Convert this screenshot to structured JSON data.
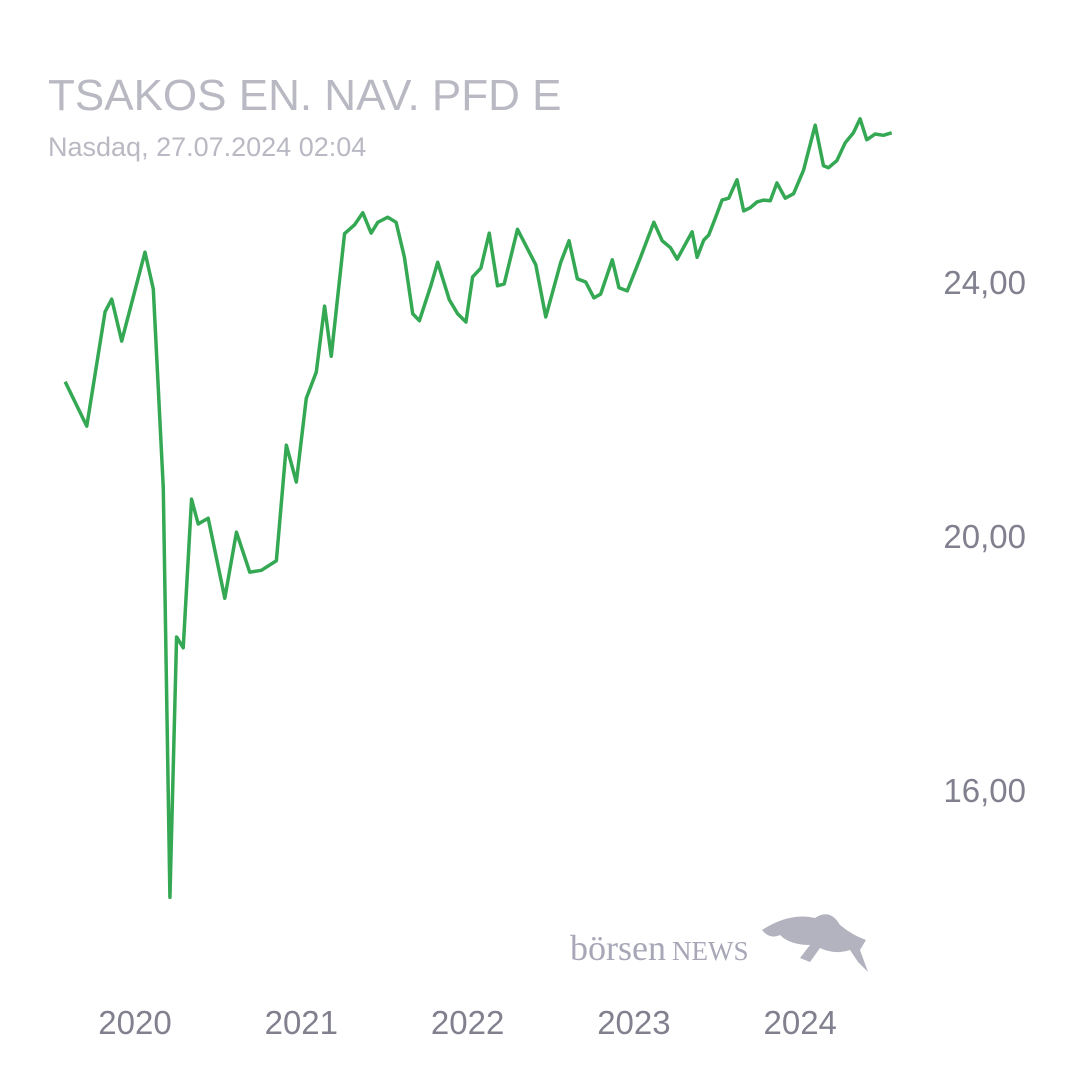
{
  "chart_data": {
    "type": "line",
    "title": "TSAKOS EN. NAV. PFD E",
    "subtitle": "Nasdaq, 27.07.2024 02:04",
    "logo": [
      "börsen",
      "NEWS"
    ],
    "x": [
      2019.58,
      2019.71,
      2019.82,
      2019.86,
      2019.92,
      2020.06,
      2020.11,
      2020.17,
      2020.21,
      2020.25,
      2020.29,
      2020.34,
      2020.38,
      2020.44,
      2020.54,
      2020.61,
      2020.69,
      2020.76,
      2020.85,
      2020.91,
      2020.97,
      2021.03,
      2021.09,
      2021.14,
      2021.18,
      2021.26,
      2021.32,
      2021.37,
      2021.42,
      2021.46,
      2021.52,
      2021.57,
      2021.62,
      2021.67,
      2021.71,
      2021.78,
      2021.82,
      2021.89,
      2021.94,
      2021.99,
      2022.03,
      2022.08,
      2022.13,
      2022.18,
      2022.22,
      2022.3,
      2022.41,
      2022.47,
      2022.56,
      2022.61,
      2022.66,
      2022.71,
      2022.76,
      2022.8,
      2022.87,
      2022.91,
      2022.96,
      2023.04,
      2023.12,
      2023.17,
      2023.22,
      2023.26,
      2023.35,
      2023.38,
      2023.42,
      2023.45,
      2023.49,
      2023.53,
      2023.57,
      2023.62,
      2023.66,
      2023.7,
      2023.74,
      2023.78,
      2023.82,
      2023.86,
      2023.91,
      2023.96,
      2024.02,
      2024.09,
      2024.14,
      2024.17,
      2024.22,
      2024.27,
      2024.32,
      2024.36,
      2024.4,
      2024.45,
      2024.5,
      2024.55
    ],
    "series": [
      {
        "name": "TSAKOS EN. NAV. PFD E",
        "color": "#34a853",
        "values": [
          22.43,
          21.73,
          23.53,
          23.73,
          23.07,
          24.47,
          23.89,
          20.76,
          14.31,
          18.41,
          18.24,
          20.58,
          20.19,
          20.28,
          19.02,
          20.06,
          19.43,
          19.46,
          19.61,
          21.43,
          20.85,
          22.17,
          22.58,
          23.62,
          22.83,
          24.76,
          24.9,
          25.09,
          24.77,
          24.94,
          25.02,
          24.94,
          24.39,
          23.5,
          23.39,
          23.95,
          24.31,
          23.72,
          23.5,
          23.37,
          24.08,
          24.22,
          24.77,
          23.94,
          23.97,
          24.83,
          24.27,
          23.45,
          24.31,
          24.65,
          24.05,
          24.0,
          23.75,
          23.81,
          24.35,
          23.91,
          23.86,
          24.39,
          24.94,
          24.65,
          24.54,
          24.36,
          24.79,
          24.39,
          24.66,
          24.74,
          25.01,
          25.29,
          25.32,
          25.61,
          25.12,
          25.17,
          25.26,
          25.29,
          25.28,
          25.56,
          25.32,
          25.39,
          25.76,
          26.47,
          25.83,
          25.8,
          25.91,
          26.19,
          26.35,
          26.57,
          26.24,
          26.33,
          26.31,
          26.35
        ]
      }
    ],
    "xlim": [
      2019.5,
      2024.6
    ],
    "xticks": [
      2020,
      2021,
      2022,
      2023,
      2024
    ],
    "ylim": [
      13,
      26.7
    ],
    "yticks": [
      {
        "value": 16,
        "label": "16,00"
      },
      {
        "value": 20,
        "label": "20,00"
      },
      {
        "value": 24,
        "label": "24,00"
      }
    ],
    "grid": false
  }
}
